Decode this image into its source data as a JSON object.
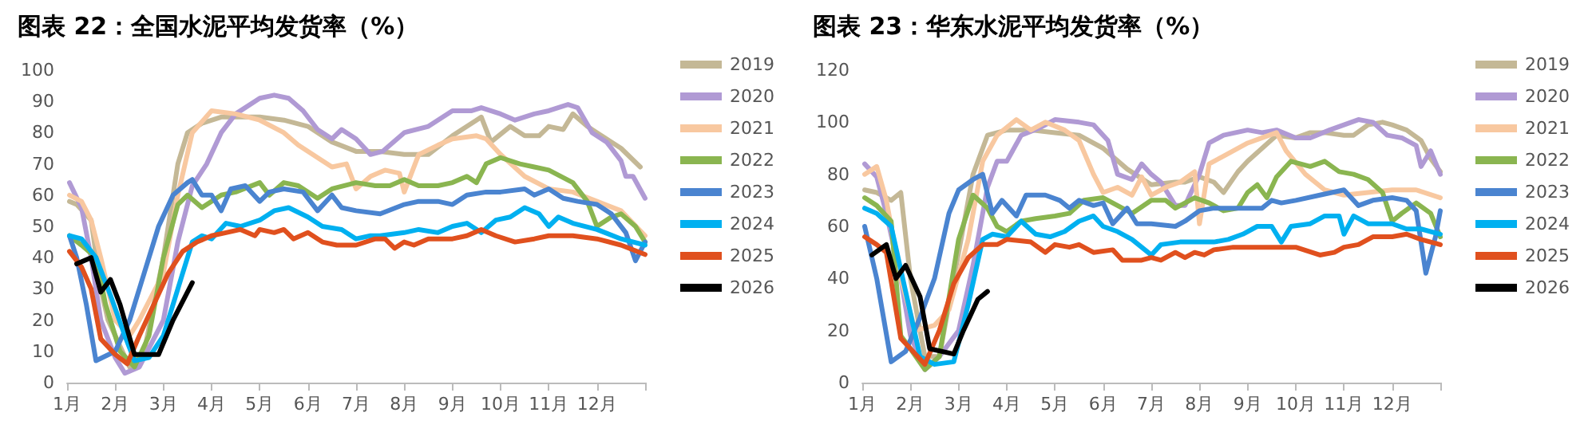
{
  "chart_data": [
    {
      "type": "line",
      "title": "图表 22：全国水泥平均发货率（%）",
      "legend": "right",
      "marker": "none",
      "line_style": "solid",
      "grid": false,
      "xlim": [
        1,
        13
      ],
      "xticks": [
        {
          "value": 1,
          "label": "1月"
        },
        {
          "value": 2,
          "label": "2月"
        },
        {
          "value": 3,
          "label": "3月"
        },
        {
          "value": 4,
          "label": "4月"
        },
        {
          "value": 5,
          "label": "5月"
        },
        {
          "value": 6,
          "label": "6月"
        },
        {
          "value": 7,
          "label": "7月"
        },
        {
          "value": 8,
          "label": "8月"
        },
        {
          "value": 9,
          "label": "9月"
        },
        {
          "value": 10,
          "label": "10月"
        },
        {
          "value": 11,
          "label": "11月"
        },
        {
          "value": 12,
          "label": "12月"
        },
        {
          "value": 13,
          "label": null
        }
      ],
      "ylim": [
        0,
        100
      ],
      "yticks": [
        0,
        10,
        20,
        30,
        40,
        50,
        60,
        70,
        80,
        90,
        100
      ],
      "series": [
        {
          "name": "2019",
          "color": "#c4b896",
          "x": [
            1.05,
            1.2,
            1.5,
            1.7,
            1.85,
            2.3,
            2.6,
            3.0,
            3.3,
            3.5,
            3.8,
            4.2,
            4.5,
            5.0,
            5.5,
            6.0,
            6.5,
            7.0,
            7.5,
            8.0,
            8.5,
            9.0,
            9.5,
            9.6,
            9.8,
            10.2,
            10.5,
            10.8,
            11.0,
            11.3,
            11.5,
            11.8,
            12.0,
            12.5,
            12.9
          ],
          "values": [
            58,
            57,
            52,
            30,
            20,
            5,
            10,
            40,
            70,
            80,
            83,
            85,
            85,
            85,
            84,
            82,
            77,
            74,
            74,
            73,
            73,
            79,
            84,
            85,
            77,
            82,
            79,
            79,
            82,
            81,
            86,
            82,
            80,
            75,
            69
          ]
        },
        {
          "name": "2020",
          "color": "#b09ad4",
          "x": [
            1.05,
            1.3,
            1.5,
            1.7,
            2.0,
            2.2,
            2.5,
            3.0,
            3.3,
            3.6,
            3.9,
            4.2,
            4.5,
            5.0,
            5.3,
            5.6,
            5.9,
            6.2,
            6.5,
            6.7,
            7.0,
            7.3,
            7.55,
            8.0,
            8.5,
            9.0,
            9.4,
            9.6,
            10.0,
            10.3,
            10.7,
            11.0,
            11.4,
            11.6,
            11.9,
            12.2,
            12.5,
            12.6,
            12.75,
            13.0
          ],
          "values": [
            64,
            56,
            40,
            20,
            8,
            3,
            5,
            20,
            45,
            63,
            70,
            80,
            86,
            91,
            92,
            91,
            87,
            81,
            78,
            81,
            78,
            73,
            74,
            80,
            82,
            87,
            87,
            88,
            86,
            84,
            86,
            87,
            89,
            88,
            80,
            77,
            71,
            66,
            66,
            59
          ]
        },
        {
          "name": "2021",
          "color": "#f8c8a0",
          "x": [
            1.05,
            1.3,
            1.5,
            1.7,
            2.0,
            2.3,
            2.5,
            3.0,
            3.3,
            3.6,
            4.0,
            4.5,
            5.0,
            5.5,
            5.8,
            6.2,
            6.5,
            6.8,
            7.0,
            7.3,
            7.6,
            7.9,
            8.0,
            8.3,
            8.7,
            9.0,
            9.5,
            9.7,
            10.0,
            10.5,
            11.0,
            11.5,
            12.0,
            12.5,
            13.0
          ],
          "values": [
            60,
            58,
            52,
            40,
            20,
            15,
            20,
            35,
            60,
            80,
            87,
            86,
            84,
            80,
            76,
            72,
            69,
            70,
            62,
            66,
            68,
            67,
            61,
            73,
            76,
            78,
            79,
            78,
            73,
            66,
            62,
            61,
            58,
            55,
            47
          ]
        },
        {
          "name": "2022",
          "color": "#8ab550",
          "x": [
            1.05,
            1.3,
            1.6,
            1.8,
            2.1,
            2.4,
            2.7,
            3.0,
            3.3,
            3.5,
            3.8,
            4.2,
            4.5,
            5.0,
            5.2,
            5.5,
            5.8,
            6.2,
            6.5,
            7.0,
            7.4,
            7.7,
            8.0,
            8.3,
            8.7,
            9.0,
            9.3,
            9.5,
            9.7,
            10.0,
            10.4,
            10.7,
            11.0,
            11.5,
            11.8,
            12.0,
            12.3,
            12.5,
            12.8,
            13.0
          ],
          "values": [
            47,
            44,
            40,
            25,
            10,
            5,
            15,
            40,
            57,
            60,
            56,
            60,
            61,
            64,
            60,
            64,
            63,
            59,
            62,
            64,
            63,
            63,
            65,
            63,
            63,
            64,
            66,
            64,
            70,
            72,
            70,
            69,
            68,
            64,
            58,
            50,
            53,
            54,
            50,
            45
          ]
        },
        {
          "name": "2023",
          "color": "#4a84d0",
          "x": [
            1.05,
            1.2,
            1.4,
            1.6,
            2.0,
            2.3,
            2.6,
            2.9,
            3.2,
            3.5,
            3.6,
            3.8,
            4.0,
            4.2,
            4.4,
            4.7,
            5.0,
            5.2,
            5.5,
            5.9,
            6.2,
            6.5,
            6.7,
            7.0,
            7.5,
            8.0,
            8.3,
            8.7,
            9.0,
            9.3,
            9.7,
            10.0,
            10.5,
            10.7,
            11.0,
            11.3,
            11.6,
            12.0,
            12.3,
            12.6,
            12.8,
            13.0
          ],
          "values": [
            47,
            40,
            25,
            7,
            10,
            20,
            35,
            50,
            60,
            64,
            65,
            60,
            60,
            55,
            62,
            63,
            58,
            61,
            62,
            61,
            55,
            60,
            56,
            55,
            54,
            57,
            58,
            58,
            57,
            60,
            61,
            61,
            62,
            60,
            62,
            59,
            58,
            57,
            54,
            48,
            39,
            45
          ]
        },
        {
          "name": "2024",
          "color": "#00b0f0",
          "x": [
            1.05,
            1.3,
            1.6,
            1.9,
            2.2,
            2.4,
            2.7,
            3.0,
            3.3,
            3.6,
            3.8,
            4.0,
            4.3,
            4.6,
            5.0,
            5.3,
            5.6,
            6.0,
            6.3,
            6.7,
            7.0,
            7.3,
            7.5,
            8.0,
            8.3,
            8.7,
            9.0,
            9.3,
            9.6,
            9.9,
            10.2,
            10.5,
            10.8,
            11.0,
            11.2,
            11.5,
            12.0,
            12.5,
            13.0
          ],
          "values": [
            47,
            46,
            40,
            28,
            15,
            7,
            8,
            15,
            30,
            45,
            47,
            46,
            51,
            50,
            52,
            55,
            56,
            53,
            50,
            49,
            46,
            47,
            47,
            48,
            49,
            48,
            50,
            51,
            48,
            52,
            53,
            56,
            54,
            50,
            53,
            51,
            49,
            46,
            44
          ]
        },
        {
          "name": "2025",
          "color": "#e0501e",
          "x": [
            1.05,
            1.3,
            1.5,
            1.7,
            2.0,
            2.25,
            2.5,
            2.8,
            3.1,
            3.4,
            3.7,
            4.0,
            4.3,
            4.6,
            4.9,
            5.0,
            5.3,
            5.5,
            5.7,
            6.0,
            6.3,
            6.6,
            7.0,
            7.4,
            7.6,
            7.8,
            8.0,
            8.2,
            8.5,
            9.0,
            9.3,
            9.6,
            9.9,
            10.3,
            10.7,
            11.0,
            11.5,
            12.0,
            12.5,
            13.0
          ],
          "values": [
            42,
            37,
            30,
            14,
            9,
            6,
            15,
            25,
            35,
            42,
            45,
            47,
            48,
            49,
            47,
            49,
            48,
            49,
            46,
            48,
            45,
            44,
            44,
            46,
            46,
            43,
            45,
            44,
            46,
            46,
            47,
            49,
            47,
            45,
            46,
            47,
            47,
            46,
            44,
            41
          ]
        },
        {
          "name": "2026",
          "color": "#000000",
          "x": [
            1.2,
            1.5,
            1.7,
            1.9,
            2.1,
            2.4,
            2.6,
            2.9,
            3.2,
            3.6
          ],
          "values": [
            38,
            40,
            29,
            33,
            25,
            9,
            9,
            9,
            20,
            32
          ]
        }
      ]
    },
    {
      "type": "line",
      "title": "图表 23：华东水泥平均发货率（%）",
      "legend": "right",
      "marker": "none",
      "line_style": "solid",
      "grid": false,
      "xlim": [
        1,
        13
      ],
      "xticks": [
        {
          "value": 1,
          "label": "1月"
        },
        {
          "value": 2,
          "label": "2月"
        },
        {
          "value": 3,
          "label": "3月"
        },
        {
          "value": 4,
          "label": "4月"
        },
        {
          "value": 5,
          "label": "5月"
        },
        {
          "value": 6,
          "label": "6月"
        },
        {
          "value": 7,
          "label": "7月"
        },
        {
          "value": 8,
          "label": "8月"
        },
        {
          "value": 9,
          "label": "9月"
        },
        {
          "value": 10,
          "label": "10月"
        },
        {
          "value": 11,
          "label": "11月"
        },
        {
          "value": 12,
          "label": "12月"
        },
        {
          "value": 13,
          "label": null
        }
      ],
      "ylim": [
        0,
        120
      ],
      "yticks": [
        0,
        20,
        40,
        60,
        80,
        100,
        120
      ],
      "series": [
        {
          "name": "2019",
          "color": "#c4b896",
          "x": [
            1.05,
            1.3,
            1.6,
            1.8,
            2.0,
            2.3,
            2.6,
            3.0,
            3.3,
            3.6,
            4.0,
            4.5,
            5.0,
            5.5,
            6.0,
            6.5,
            7.0,
            7.5,
            7.7,
            8.0,
            8.3,
            8.5,
            8.8,
            9.0,
            9.3,
            9.6,
            10.0,
            10.3,
            10.6,
            11.0,
            11.2,
            11.5,
            11.8,
            12.0,
            12.3,
            12.6,
            12.8,
            13.0
          ],
          "values": [
            74,
            73,
            70,
            73,
            40,
            10,
            10,
            50,
            80,
            95,
            97,
            97,
            96,
            95,
            90,
            82,
            76,
            77,
            77,
            79,
            77,
            73,
            81,
            85,
            90,
            95,
            94,
            96,
            96,
            95,
            95,
            99,
            100,
            99,
            97,
            93,
            86,
            81
          ]
        },
        {
          "name": "2020",
          "color": "#b09ad4",
          "x": [
            1.05,
            1.3,
            1.5,
            1.8,
            2.0,
            2.3,
            2.6,
            3.0,
            3.3,
            3.6,
            3.8,
            4.0,
            4.3,
            4.7,
            5.0,
            5.5,
            5.8,
            6.1,
            6.3,
            6.6,
            6.8,
            7.0,
            7.2,
            7.5,
            7.7,
            8.0,
            8.2,
            8.5,
            9.0,
            9.3,
            9.6,
            10.0,
            10.3,
            10.7,
            11.0,
            11.3,
            11.6,
            11.9,
            12.2,
            12.5,
            12.6,
            12.8,
            13.0
          ],
          "values": [
            84,
            79,
            65,
            40,
            18,
            5,
            10,
            20,
            45,
            75,
            85,
            85,
            95,
            98,
            101,
            100,
            99,
            93,
            80,
            78,
            84,
            80,
            77,
            68,
            68,
            80,
            92,
            95,
            97,
            96,
            97,
            94,
            94,
            97,
            99,
            101,
            100,
            95,
            94,
            91,
            83,
            89,
            80
          ]
        },
        {
          "name": "2021",
          "color": "#f8c8a0",
          "x": [
            1.05,
            1.3,
            1.5,
            1.8,
            2.1,
            2.5,
            2.8,
            3.2,
            3.5,
            3.8,
            4.2,
            4.5,
            4.8,
            5.2,
            5.5,
            5.8,
            6.0,
            6.3,
            6.6,
            6.8,
            7.0,
            7.3,
            7.6,
            7.9,
            8.0,
            8.2,
            8.5,
            9.0,
            9.3,
            9.6,
            9.8,
            10.2,
            10.6,
            11.0,
            11.5,
            12.0,
            12.5,
            13.0
          ],
          "values": [
            80,
            83,
            70,
            40,
            20,
            22,
            28,
            55,
            85,
            95,
            101,
            97,
            100,
            97,
            93,
            80,
            73,
            75,
            72,
            79,
            72,
            75,
            77,
            81,
            61,
            84,
            87,
            92,
            94,
            96,
            89,
            80,
            74,
            72,
            73,
            74,
            74,
            71
          ]
        },
        {
          "name": "2022",
          "color": "#8ab550",
          "x": [
            1.05,
            1.3,
            1.6,
            1.8,
            2.0,
            2.3,
            2.6,
            3.0,
            3.3,
            3.6,
            3.8,
            4.0,
            4.3,
            4.6,
            5.0,
            5.3,
            5.6,
            6.0,
            6.3,
            6.6,
            7.0,
            7.3,
            7.5,
            7.7,
            7.9,
            8.2,
            8.5,
            8.8,
            9.0,
            9.2,
            9.4,
            9.6,
            9.9,
            10.3,
            10.6,
            10.9,
            11.2,
            11.5,
            11.8,
            12.0,
            12.2,
            12.5,
            12.8,
            13.0
          ],
          "values": [
            71,
            68,
            62,
            18,
            13,
            5,
            10,
            55,
            72,
            67,
            60,
            58,
            62,
            63,
            64,
            65,
            70,
            71,
            68,
            65,
            70,
            70,
            67,
            69,
            71,
            69,
            66,
            67,
            73,
            76,
            71,
            79,
            85,
            83,
            85,
            81,
            80,
            78,
            73,
            62,
            65,
            69,
            65,
            56
          ]
        },
        {
          "name": "2023",
          "color": "#4a84d0",
          "x": [
            1.05,
            1.3,
            1.6,
            1.9,
            2.2,
            2.5,
            2.8,
            3.0,
            3.3,
            3.5,
            3.7,
            3.9,
            4.2,
            4.4,
            4.8,
            5.1,
            5.3,
            5.5,
            5.8,
            6.0,
            6.2,
            6.5,
            6.7,
            7.0,
            7.5,
            7.7,
            8.0,
            8.3,
            8.8,
            9.3,
            9.5,
            9.7,
            10.0,
            10.5,
            11.0,
            11.3,
            11.6,
            12.0,
            12.3,
            12.5,
            12.7,
            12.9,
            13.0
          ],
          "values": [
            60,
            40,
            8,
            12,
            25,
            40,
            65,
            74,
            78,
            80,
            65,
            70,
            64,
            72,
            72,
            70,
            67,
            70,
            68,
            69,
            61,
            67,
            61,
            61,
            60,
            62,
            66,
            67,
            67,
            67,
            70,
            69,
            70,
            72,
            74,
            68,
            70,
            71,
            70,
            66,
            42,
            56,
            66
          ]
        },
        {
          "name": "2024",
          "color": "#00b0f0",
          "x": [
            1.05,
            1.3,
            1.6,
            1.9,
            2.2,
            2.5,
            2.9,
            3.2,
            3.5,
            3.7,
            4.0,
            4.3,
            4.6,
            4.9,
            5.2,
            5.5,
            5.8,
            6.0,
            6.3,
            6.6,
            7.0,
            7.2,
            7.6,
            8.0,
            8.3,
            8.6,
            8.9,
            9.2,
            9.5,
            9.7,
            9.9,
            10.3,
            10.6,
            10.9,
            11.0,
            11.2,
            11.5,
            12.0,
            12.3,
            12.6,
            13.0
          ],
          "values": [
            67,
            65,
            60,
            35,
            10,
            7,
            8,
            30,
            55,
            57,
            56,
            62,
            57,
            56,
            58,
            62,
            64,
            60,
            58,
            55,
            49,
            53,
            54,
            54,
            54,
            55,
            57,
            60,
            60,
            54,
            60,
            61,
            64,
            64,
            57,
            64,
            61,
            61,
            59,
            59,
            57
          ]
        },
        {
          "name": "2025",
          "color": "#e0501e",
          "x": [
            1.05,
            1.3,
            1.5,
            1.8,
            2.0,
            2.3,
            2.6,
            2.9,
            3.2,
            3.5,
            3.8,
            4.0,
            4.5,
            4.8,
            5.0,
            5.3,
            5.5,
            5.8,
            6.2,
            6.4,
            6.8,
            7.0,
            7.2,
            7.5,
            7.7,
            7.9,
            8.1,
            8.3,
            8.7,
            9.0,
            9.5,
            10.0,
            10.5,
            10.8,
            11.0,
            11.3,
            11.6,
            12.0,
            12.3,
            12.6,
            13.0
          ],
          "values": [
            56,
            53,
            50,
            17,
            13,
            7,
            20,
            38,
            48,
            53,
            53,
            55,
            54,
            50,
            53,
            52,
            53,
            50,
            51,
            47,
            47,
            48,
            47,
            50,
            48,
            50,
            49,
            51,
            52,
            52,
            52,
            52,
            49,
            50,
            52,
            53,
            56,
            56,
            57,
            55,
            53
          ]
        },
        {
          "name": "2026",
          "color": "#000000",
          "x": [
            1.2,
            1.5,
            1.7,
            1.9,
            2.2,
            2.4,
            2.9,
            3.1,
            3.4,
            3.6
          ],
          "values": [
            49,
            53,
            40,
            45,
            33,
            13,
            11,
            20,
            32,
            35
          ]
        }
      ]
    }
  ]
}
